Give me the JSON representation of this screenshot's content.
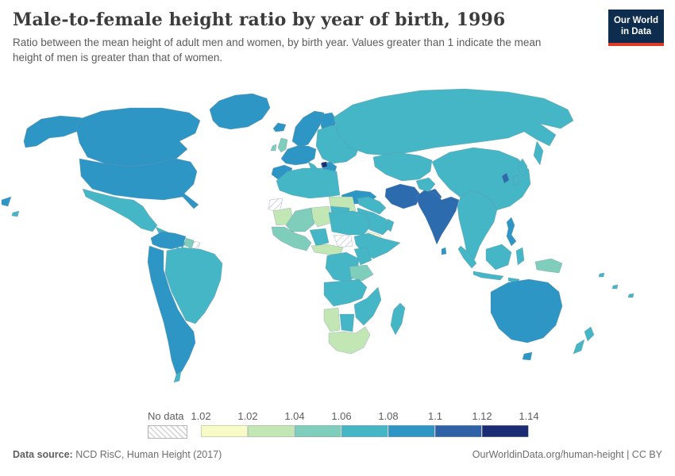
{
  "header": {
    "title": "Male-to-female height ratio by year of birth, 1996",
    "subtitle": "Ratio between the mean height of adult men and women, by birth year. Values greater than 1 indicate the mean height of men is greater than that of women.",
    "logo": {
      "line1": "Our World",
      "line2": "in Data",
      "bg_color": "#0d2c4e",
      "accent_color": "#dc3b24"
    }
  },
  "legend": {
    "no_data_label": "No data",
    "tick_labels": [
      "1.02",
      "1.02",
      "1.04",
      "1.06",
      "1.08",
      "1.1",
      "1.12",
      "1.14"
    ],
    "colors": [
      "#f8fbc5",
      "#c3e7b4",
      "#7fcdbb",
      "#45b6c6",
      "#2e96c5",
      "#2f61a6",
      "#192c74"
    ]
  },
  "footer": {
    "source_label": "Data source:",
    "source_text": " NCD RisC, Human Height (2017)",
    "right_link": "OurWorldinData.org/human-height | CC BY"
  },
  "map": {
    "palette": {
      "yellow": "#f8fbc5",
      "lightgreen": "#c3e7b4",
      "green": "#7fcdbb",
      "teal": "#45b6c6",
      "blue": "#2e96c5",
      "darkblue": "#2c6bae",
      "navy": "#1b2d75"
    },
    "region_fills": {
      "greenland": "blue",
      "alaska": "blue",
      "canada": "blue",
      "usa": "blue",
      "mexico": "teal",
      "central-america": "teal",
      "cuba": "teal",
      "hispaniola": "blue",
      "colombia-venezuela": "blue",
      "guyanas": "green",
      "suriname": "nodata",
      "brazil": "teal",
      "western-south-america": "blue",
      "chile-tip": "teal",
      "iceland": "blue",
      "uk": "green",
      "ireland": "green",
      "scandinavia": "blue",
      "finland": "blue",
      "western-europe": "blue",
      "iberia": "blue",
      "italy": "teal",
      "eastern-europe": "teal",
      "balkans": "blue",
      "montenegro": "navy",
      "greece": "teal",
      "russia": "teal",
      "kamchatka": "teal",
      "central-asia": "teal",
      "china-mongolia": "teal",
      "japan": "teal",
      "south-korea": "darkblue",
      "turkey": "blue",
      "iran": "darkblue",
      "afghanistan": "teal",
      "pakistan": "darkblue",
      "india": "darkblue",
      "sri-lanka": "blue",
      "iraq-levant": "teal",
      "saudi-arabia": "teal",
      "yemen": "yellow",
      "oman": "teal",
      "egypt": "lightgreen",
      "north-africa": "teal",
      "western-sahara": "nodata",
      "mauritania": "lightgreen",
      "mali": "green",
      "niger": "lightgreen",
      "chad": "teal",
      "west-africa": "green",
      "nigeria": "teal",
      "sudan": "teal",
      "south-sudan": "nodata",
      "ethiopia-somalia": "teal",
      "cameroon-car": "lightgreen",
      "dr-congo": "teal",
      "kenya": "teal",
      "tanzania": "green",
      "angola-zambia": "teal",
      "zimbabwe-mozambique": "teal",
      "namibia": "lightgreen",
      "botswana": "teal",
      "south-africa": "lightgreen",
      "madagascar": "teal",
      "se-asia": "teal",
      "philippines": "blue",
      "sumatra": "teal",
      "java": "teal",
      "borneo": "teal",
      "sulawesi": "teal",
      "lesser-sunda": "teal",
      "papua-new-guinea": "green",
      "australia": "blue",
      "tasmania": "blue",
      "new-zealand-north": "teal",
      "new-zealand-south": "teal",
      "pacific-speck-1": "teal",
      "pacific-speck-2": "teal",
      "pacific-speck-3": "teal",
      "chukotka-fragment": "blue",
      "hawaii": "teal"
    }
  },
  "chart_data": {
    "type": "heatmap",
    "subtype": "choropleth-world-map",
    "title": "Male-to-female height ratio by year of birth, 1996",
    "unit": "ratio (men mean height / women mean height)",
    "legend_position": "bottom",
    "legend_bins": [
      {
        "label": "No data",
        "color": "hatched-white"
      },
      {
        "label": "1.02",
        "color": "#f8fbc5"
      },
      {
        "label": "1.02–1.04",
        "color": "#c3e7b4"
      },
      {
        "label": "1.04–1.06",
        "color": "#7fcdbb"
      },
      {
        "label": "1.06–1.08",
        "color": "#45b6c6"
      },
      {
        "label": "1.08–1.1",
        "color": "#2e96c5"
      },
      {
        "label": "1.1–1.12",
        "color": "#2f61a6"
      },
      {
        "label": "1.12–1.14",
        "color": "#192c74"
      }
    ],
    "regions": [
      {
        "name": "United States",
        "bin": "1.08–1.1"
      },
      {
        "name": "Canada",
        "bin": "1.08–1.1"
      },
      {
        "name": "Greenland",
        "bin": "1.08–1.1"
      },
      {
        "name": "Mexico",
        "bin": "1.06–1.08"
      },
      {
        "name": "Cuba",
        "bin": "1.06–1.08"
      },
      {
        "name": "Colombia",
        "bin": "1.08–1.1"
      },
      {
        "name": "Venezuela",
        "bin": "1.08–1.1"
      },
      {
        "name": "Peru",
        "bin": "1.08–1.1"
      },
      {
        "name": "Bolivia",
        "bin": "1.08–1.1"
      },
      {
        "name": "Argentina",
        "bin": "1.08–1.1"
      },
      {
        "name": "Chile",
        "bin": "1.06–1.08"
      },
      {
        "name": "Brazil",
        "bin": "1.06–1.08"
      },
      {
        "name": "Guyana",
        "bin": "1.04–1.06"
      },
      {
        "name": "Suriname",
        "bin": "No data"
      },
      {
        "name": "United Kingdom",
        "bin": "1.04–1.06"
      },
      {
        "name": "Ireland",
        "bin": "1.04–1.06"
      },
      {
        "name": "Iceland",
        "bin": "1.08–1.1"
      },
      {
        "name": "Norway",
        "bin": "1.08–1.1"
      },
      {
        "name": "Sweden",
        "bin": "1.08–1.1"
      },
      {
        "name": "Finland",
        "bin": "1.08–1.1"
      },
      {
        "name": "France",
        "bin": "1.08–1.1"
      },
      {
        "name": "Germany",
        "bin": "1.08–1.1"
      },
      {
        "name": "Spain",
        "bin": "1.08–1.1"
      },
      {
        "name": "Portugal",
        "bin": "1.08–1.1"
      },
      {
        "name": "Italy",
        "bin": "1.06–1.08"
      },
      {
        "name": "Poland",
        "bin": "1.06–1.08"
      },
      {
        "name": "Ukraine",
        "bin": "1.06–1.08"
      },
      {
        "name": "Greece",
        "bin": "1.06–1.08"
      },
      {
        "name": "Bosnia and Herzegovina",
        "bin": "1.12–1.14"
      },
      {
        "name": "Turkey",
        "bin": "1.08–1.1"
      },
      {
        "name": "Russia",
        "bin": "1.06–1.08"
      },
      {
        "name": "Kazakhstan",
        "bin": "1.06–1.08"
      },
      {
        "name": "China",
        "bin": "1.06–1.08"
      },
      {
        "name": "Mongolia",
        "bin": "1.06–1.08"
      },
      {
        "name": "Japan",
        "bin": "1.06–1.08"
      },
      {
        "name": "South Korea",
        "bin": "1.1–1.12"
      },
      {
        "name": "India",
        "bin": "1.1–1.12"
      },
      {
        "name": "Bangladesh",
        "bin": "1.1–1.12"
      },
      {
        "name": "Pakistan",
        "bin": "1.1–1.12"
      },
      {
        "name": "Iran",
        "bin": "1.1–1.12"
      },
      {
        "name": "Afghanistan",
        "bin": "1.06–1.08"
      },
      {
        "name": "Iraq",
        "bin": "1.06–1.08"
      },
      {
        "name": "Saudi Arabia",
        "bin": "1.06–1.08"
      },
      {
        "name": "Yemen",
        "bin": "1.02"
      },
      {
        "name": "Egypt",
        "bin": "1.02–1.04"
      },
      {
        "name": "Algeria",
        "bin": "1.06–1.08"
      },
      {
        "name": "Libya",
        "bin": "1.06–1.08"
      },
      {
        "name": "Morocco",
        "bin": "1.06–1.08"
      },
      {
        "name": "Western Sahara",
        "bin": "No data"
      },
      {
        "name": "Mauritania",
        "bin": "1.02–1.04"
      },
      {
        "name": "Mali",
        "bin": "1.04–1.06"
      },
      {
        "name": "Niger",
        "bin": "1.02–1.04"
      },
      {
        "name": "Chad",
        "bin": "1.06–1.08"
      },
      {
        "name": "Nigeria",
        "bin": "1.06–1.08"
      },
      {
        "name": "Sudan",
        "bin": "1.06–1.08"
      },
      {
        "name": "South Sudan",
        "bin": "No data"
      },
      {
        "name": "Ethiopia",
        "bin": "1.06–1.08"
      },
      {
        "name": "Somalia",
        "bin": "1.06–1.08"
      },
      {
        "name": "Kenya",
        "bin": "1.06–1.08"
      },
      {
        "name": "Tanzania",
        "bin": "1.04–1.06"
      },
      {
        "name": "Cameroon",
        "bin": "1.02–1.04"
      },
      {
        "name": "Democratic Republic of Congo",
        "bin": "1.06–1.08"
      },
      {
        "name": "Angola",
        "bin": "1.06–1.08"
      },
      {
        "name": "Zambia",
        "bin": "1.06–1.08"
      },
      {
        "name": "Zimbabwe",
        "bin": "1.06–1.08"
      },
      {
        "name": "Mozambique",
        "bin": "1.06–1.08"
      },
      {
        "name": "Namibia",
        "bin": "1.02–1.04"
      },
      {
        "name": "Botswana",
        "bin": "1.06–1.08"
      },
      {
        "name": "South Africa",
        "bin": "1.02–1.04"
      },
      {
        "name": "Madagascar",
        "bin": "1.06–1.08"
      },
      {
        "name": "Myanmar",
        "bin": "1.06–1.08"
      },
      {
        "name": "Thailand",
        "bin": "1.06–1.08"
      },
      {
        "name": "Vietnam",
        "bin": "1.06–1.08"
      },
      {
        "name": "Philippines",
        "bin": "1.08–1.1"
      },
      {
        "name": "Indonesia",
        "bin": "1.06–1.08"
      },
      {
        "name": "Papua New Guinea",
        "bin": "1.04–1.06"
      },
      {
        "name": "Australia",
        "bin": "1.08–1.1"
      },
      {
        "name": "New Zealand",
        "bin": "1.06–1.08"
      }
    ]
  }
}
